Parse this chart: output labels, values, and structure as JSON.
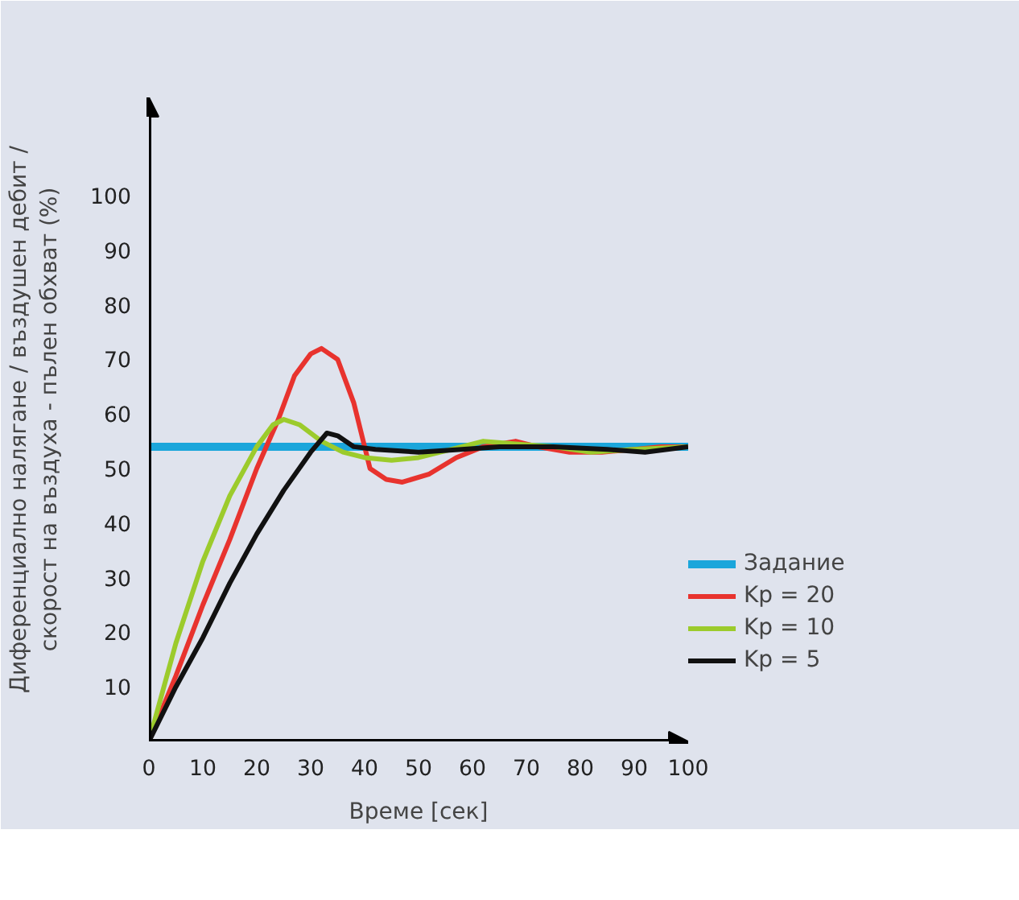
{
  "chart_data": {
    "type": "line",
    "xlabel": "Време [сек]",
    "ylabel": "Диференциално налягане / въздушен дебит /\nскорост на въздуха - пълен обхват (%)",
    "xlim": [
      0,
      100
    ],
    "ylim": [
      0,
      118
    ],
    "xticks": [
      0,
      10,
      20,
      30,
      40,
      50,
      60,
      70,
      80,
      90,
      100
    ],
    "yticks": [
      10,
      20,
      30,
      40,
      50,
      60,
      70,
      80,
      90,
      100
    ],
    "grid": false,
    "legend": "bottom right",
    "marker": "none",
    "line_style": "solid",
    "series": [
      {
        "name": "Задание",
        "color": "#1ba6db",
        "x": [
          0,
          100
        ],
        "values": [
          54,
          54
        ]
      },
      {
        "name": "Kp = 20",
        "color": "#e8332e",
        "x": [
          0,
          5,
          10,
          15,
          20,
          24,
          27,
          30,
          32,
          35,
          38,
          41,
          44,
          47,
          52,
          57,
          62,
          68,
          72,
          78,
          84,
          90,
          95,
          100
        ],
        "values": [
          0,
          12,
          25,
          37,
          50,
          59,
          67,
          71,
          72,
          70,
          62,
          50,
          48,
          47.5,
          49,
          52,
          54,
          55,
          54,
          53,
          53,
          53.5,
          54,
          54
        ]
      },
      {
        "name": "Kp = 10",
        "color": "#9ccb2c",
        "x": [
          0,
          5,
          10,
          15,
          20,
          23,
          25,
          28,
          32,
          36,
          40,
          45,
          50,
          56,
          62,
          68,
          75,
          82,
          90,
          100
        ],
        "values": [
          0,
          18,
          33,
          45,
          54,
          58,
          59,
          58,
          55,
          53,
          52,
          51.5,
          52,
          53.5,
          55,
          54.5,
          54,
          53,
          53.5,
          54
        ]
      },
      {
        "name": "Kp = 5",
        "color": "#111111",
        "x": [
          0,
          5,
          10,
          15,
          20,
          25,
          30,
          33,
          35,
          38,
          42,
          50,
          58,
          65,
          75,
          85,
          92,
          100
        ],
        "values": [
          0,
          10,
          19,
          29,
          38,
          46,
          53,
          56.5,
          56,
          54,
          53.5,
          53,
          53.5,
          54,
          54,
          53.5,
          53,
          54
        ]
      }
    ]
  }
}
